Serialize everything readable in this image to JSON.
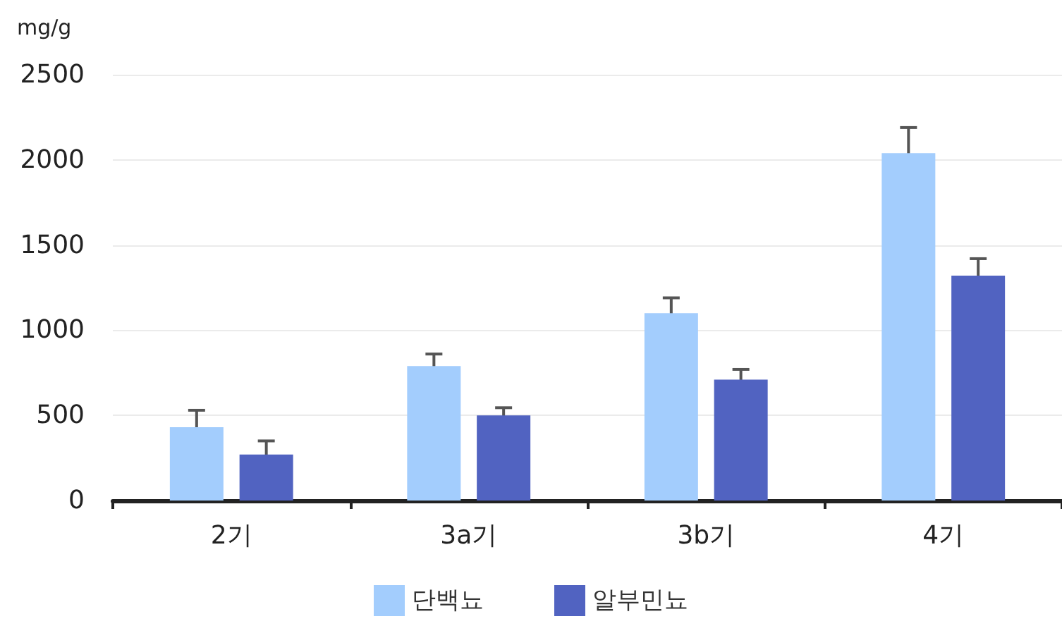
{
  "chart_data": {
    "type": "bar",
    "ylabel": "mg/g",
    "categories": [
      "2기",
      "3a기",
      "3b기",
      "4기"
    ],
    "series": [
      {
        "name": "단백뇨",
        "color": "#a3cdfd",
        "values": [
          430,
          790,
          1100,
          2040
        ],
        "errors": [
          100,
          70,
          90,
          150
        ]
      },
      {
        "name": "알부민뇨",
        "color": "#5163c1",
        "values": [
          270,
          500,
          710,
          1320
        ],
        "errors": [
          80,
          45,
          60,
          100
        ]
      }
    ],
    "ylim": [
      0,
      2500
    ],
    "yticks": [
      0,
      500,
      1000,
      1500,
      2000,
      2500
    ],
    "grid": "y",
    "legend": "bottom"
  }
}
